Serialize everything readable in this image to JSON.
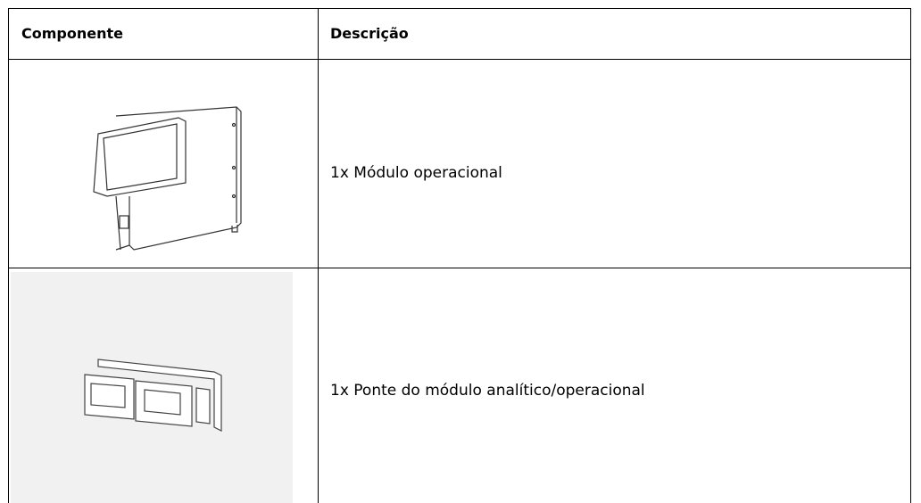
{
  "table": {
    "header": [
      "Componente",
      "Descrição"
    ],
    "rows": [
      [
        null,
        "1x Módulo operacional"
      ],
      [
        null,
        "1x Ponte do módulo analítico/operacional"
      ]
    ]
  }
}
